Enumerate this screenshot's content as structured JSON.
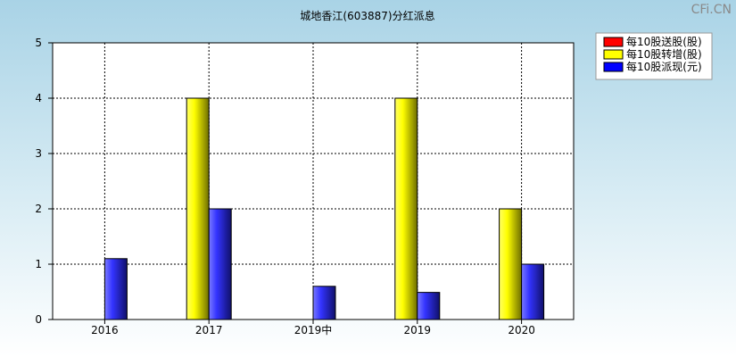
{
  "watermark": "CFi.CN",
  "chart_data": {
    "type": "bar",
    "title": "城地香江(603887)分红派息",
    "categories": [
      "2016",
      "2017",
      "2019中",
      "2019",
      "2020"
    ],
    "series": [
      {
        "name": "每10股送股(股)",
        "color": "#ff0000",
        "values": [
          0,
          0,
          0,
          0,
          0
        ]
      },
      {
        "name": "每10股转增(股)",
        "color": "#ffff00",
        "values": [
          0,
          4,
          0,
          4,
          2
        ]
      },
      {
        "name": "每10股派现(元)",
        "color": "#0000ff",
        "values": [
          1.1,
          2,
          0.6,
          0.49,
          1
        ]
      }
    ],
    "ylim": [
      0,
      5
    ],
    "yticks": [
      "0",
      "1",
      "2",
      "3",
      "4",
      "5"
    ],
    "xlabel": "",
    "ylabel": "",
    "grid": true,
    "legend_position": "top-right"
  }
}
